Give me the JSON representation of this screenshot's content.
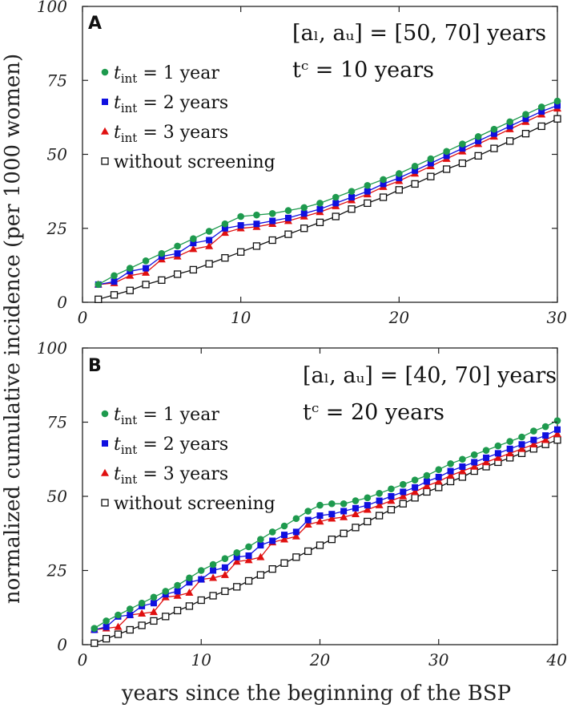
{
  "y_axis_label": "normalized cumulative incidence (per 1000 women)",
  "x_axis_label": "years since the beginning of the BSP",
  "colors": {
    "tint1": "#1e9a4e",
    "tint2": "#1010e0",
    "tint3": "#e01010",
    "none": "#111111"
  },
  "chart_data": [
    {
      "type": "line",
      "panel": "A",
      "param_range": "[a_l, a_u] = [50, 70] years",
      "param_range_display": "[aₗ, aᵤ] = [50, 70] years",
      "param_tc": "t_c = 10 years",
      "param_tc_display": "tᶜ = 10 years",
      "xlim": [
        0,
        30
      ],
      "ylim": [
        0,
        100
      ],
      "xticks": [
        0,
        10,
        20,
        30
      ],
      "yticks": [
        0,
        25,
        50,
        75,
        100
      ],
      "legend_position": "top-left",
      "series": [
        {
          "name": "t_int = 1 year",
          "legend_label": "t_int = 1 year",
          "marker": "circle",
          "color": "#1e9a4e",
          "x": [
            1,
            2,
            3,
            4,
            5,
            6,
            7,
            8,
            9,
            10,
            11,
            12,
            13,
            14,
            15,
            16,
            17,
            18,
            19,
            20,
            21,
            22,
            23,
            24,
            25,
            26,
            27,
            28,
            29,
            30
          ],
          "values": [
            6,
            9,
            11.5,
            14,
            16.5,
            19,
            21.5,
            24,
            26.5,
            29,
            29.5,
            30,
            31,
            32,
            33.5,
            35.5,
            37.5,
            39.5,
            41.5,
            43.5,
            46,
            48.5,
            51,
            53.5,
            56,
            58.5,
            61,
            63.5,
            66,
            68
          ]
        },
        {
          "name": "t_int = 2 years",
          "legend_label": "t_int = 2 years",
          "marker": "square",
          "color": "#1010e0",
          "x": [
            1,
            2,
            3,
            4,
            5,
            6,
            7,
            8,
            9,
            10,
            11,
            12,
            13,
            14,
            15,
            16,
            17,
            18,
            19,
            20,
            21,
            22,
            23,
            24,
            25,
            26,
            27,
            28,
            29,
            30
          ],
          "values": [
            6,
            7,
            10.5,
            11.5,
            15.5,
            16.5,
            20,
            21,
            25,
            26,
            26.5,
            27.5,
            28.5,
            30,
            31.5,
            33.5,
            35.5,
            37.5,
            40,
            42,
            44.5,
            47,
            49.5,
            52,
            54.5,
            57,
            59.5,
            62,
            64.5,
            66.5
          ]
        },
        {
          "name": "t_int = 3 years",
          "legend_label": "t_int = 3 years",
          "marker": "triangle",
          "color": "#e01010",
          "x": [
            1,
            2,
            3,
            4,
            5,
            6,
            7,
            8,
            9,
            10,
            11,
            12,
            13,
            14,
            15,
            16,
            17,
            18,
            19,
            20,
            21,
            22,
            23,
            24,
            25,
            26,
            27,
            28,
            29,
            30
          ],
          "values": [
            6,
            6.5,
            9,
            10,
            14.5,
            15.5,
            18,
            19,
            23.5,
            25,
            25.5,
            26.5,
            27.5,
            29,
            30.5,
            32.5,
            34.5,
            36.5,
            39,
            41,
            43.5,
            46,
            48.5,
            51,
            53.5,
            56,
            58.5,
            61,
            63.5,
            65.5
          ]
        },
        {
          "name": "without screening",
          "legend_label": "without screening",
          "marker": "open-square",
          "color": "#111111",
          "x": [
            1,
            2,
            3,
            4,
            5,
            6,
            7,
            8,
            9,
            10,
            11,
            12,
            13,
            14,
            15,
            16,
            17,
            18,
            19,
            20,
            21,
            22,
            23,
            24,
            25,
            26,
            27,
            28,
            29,
            30
          ],
          "values": [
            1,
            2.5,
            4,
            6,
            7.5,
            9.5,
            11,
            13,
            15,
            17,
            19,
            21,
            23,
            25,
            27,
            29,
            31.5,
            33.5,
            35.5,
            38,
            40,
            42.5,
            45,
            47,
            49.5,
            52,
            54.5,
            57,
            59.5,
            62
          ]
        }
      ]
    },
    {
      "type": "line",
      "panel": "B",
      "param_range": "[a_l, a_u] = [40, 70] years",
      "param_range_display": "[aₗ, aᵤ] = [40, 70] years",
      "param_tc": "t_c = 20 years",
      "param_tc_display": "tᶜ = 20 years",
      "xlim": [
        0,
        40
      ],
      "ylim": [
        0,
        100
      ],
      "xticks": [
        0,
        10,
        20,
        30,
        40
      ],
      "yticks": [
        0,
        25,
        50,
        75,
        100
      ],
      "legend_position": "top-left",
      "series": [
        {
          "name": "t_int = 1 year",
          "legend_label": "t_int = 1 year",
          "marker": "circle",
          "color": "#1e9a4e",
          "x": [
            1,
            2,
            3,
            4,
            5,
            6,
            7,
            8,
            9,
            10,
            11,
            12,
            13,
            14,
            15,
            16,
            17,
            18,
            19,
            20,
            21,
            22,
            23,
            24,
            25,
            26,
            27,
            28,
            29,
            30,
            31,
            32,
            33,
            34,
            35,
            36,
            37,
            38,
            39,
            40
          ],
          "values": [
            5.5,
            8,
            10,
            12,
            14,
            16,
            18,
            20,
            22.5,
            25,
            27,
            29,
            31,
            33,
            35.5,
            38,
            40,
            42.5,
            45,
            47,
            47.5,
            47.5,
            48.5,
            49.5,
            51,
            52.5,
            54,
            55.5,
            57,
            59,
            61,
            62.5,
            64,
            65.5,
            67,
            68.5,
            70,
            72,
            73.5,
            75.5
          ]
        },
        {
          "name": "t_int = 2 years",
          "legend_label": "t_int = 2 years",
          "marker": "square",
          "color": "#1010e0",
          "x": [
            1,
            2,
            3,
            4,
            5,
            6,
            7,
            8,
            9,
            10,
            11,
            12,
            13,
            14,
            15,
            16,
            17,
            18,
            19,
            20,
            21,
            22,
            23,
            24,
            25,
            26,
            27,
            28,
            29,
            30,
            31,
            32,
            33,
            34,
            35,
            36,
            37,
            38,
            39,
            40
          ],
          "values": [
            5,
            6,
            9.5,
            10,
            13,
            14,
            17,
            18,
            21,
            22,
            25,
            26,
            29.5,
            30,
            33.5,
            35,
            37,
            38,
            42,
            43.5,
            44,
            45,
            46,
            47,
            48.5,
            50,
            51.5,
            53,
            55,
            56.5,
            58.5,
            60,
            61.5,
            63,
            64.5,
            66,
            67.5,
            69,
            70.5,
            72.5
          ]
        },
        {
          "name": "t_int = 3 years",
          "legend_label": "t_int = 3 years",
          "marker": "triangle",
          "color": "#e01010",
          "x": [
            1,
            2,
            3,
            4,
            5,
            6,
            7,
            8,
            9,
            10,
            11,
            12,
            13,
            14,
            15,
            16,
            17,
            18,
            19,
            20,
            21,
            22,
            23,
            24,
            25,
            26,
            27,
            28,
            29,
            30,
            31,
            32,
            33,
            34,
            35,
            36,
            37,
            38,
            39,
            40
          ],
          "values": [
            5,
            5.5,
            6,
            10,
            10.5,
            11,
            16,
            16.5,
            17.5,
            22,
            22.5,
            23.5,
            28,
            28.5,
            29.5,
            34.5,
            35.5,
            36.5,
            40.5,
            41.5,
            42.5,
            43,
            44,
            45.5,
            47,
            48.5,
            50,
            51.5,
            53.5,
            55,
            57,
            58.5,
            60,
            61.5,
            63,
            64.5,
            66,
            67.5,
            69,
            71
          ]
        },
        {
          "name": "without screening",
          "legend_label": "without screening",
          "marker": "open-square",
          "color": "#111111",
          "x": [
            1,
            2,
            3,
            4,
            5,
            6,
            7,
            8,
            9,
            10,
            11,
            12,
            13,
            14,
            15,
            16,
            17,
            18,
            19,
            20,
            21,
            22,
            23,
            24,
            25,
            26,
            27,
            28,
            29,
            30,
            31,
            32,
            33,
            34,
            35,
            36,
            37,
            38,
            39,
            40
          ],
          "values": [
            0.5,
            2,
            3.5,
            5,
            6.5,
            8,
            9.5,
            11.5,
            13,
            15,
            16.5,
            18,
            19.5,
            21.5,
            23.5,
            25.5,
            27.5,
            29.5,
            31.5,
            33.5,
            35.5,
            37.5,
            39.5,
            41.5,
            43.5,
            45.5,
            47.5,
            49.5,
            51.5,
            53,
            55,
            56.5,
            58.5,
            60,
            61.5,
            63,
            64.5,
            66,
            67.5,
            69
          ]
        }
      ]
    }
  ]
}
